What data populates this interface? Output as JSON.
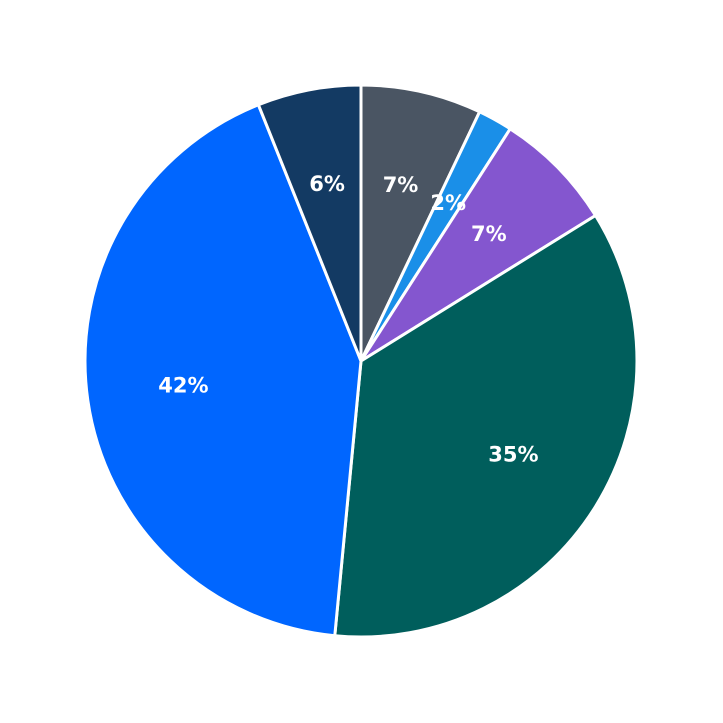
{
  "chart_data": {
    "type": "pie",
    "values": [
      7,
      2,
      7,
      35,
      42,
      6
    ],
    "value_labels": [
      "7%",
      "2%",
      "7%",
      "35%",
      "42%",
      "6%"
    ],
    "colors": [
      "#4a5563",
      "#1a8fe8",
      "#8456cf",
      "#005e5c",
      "#0066ff",
      "#133a63"
    ]
  }
}
